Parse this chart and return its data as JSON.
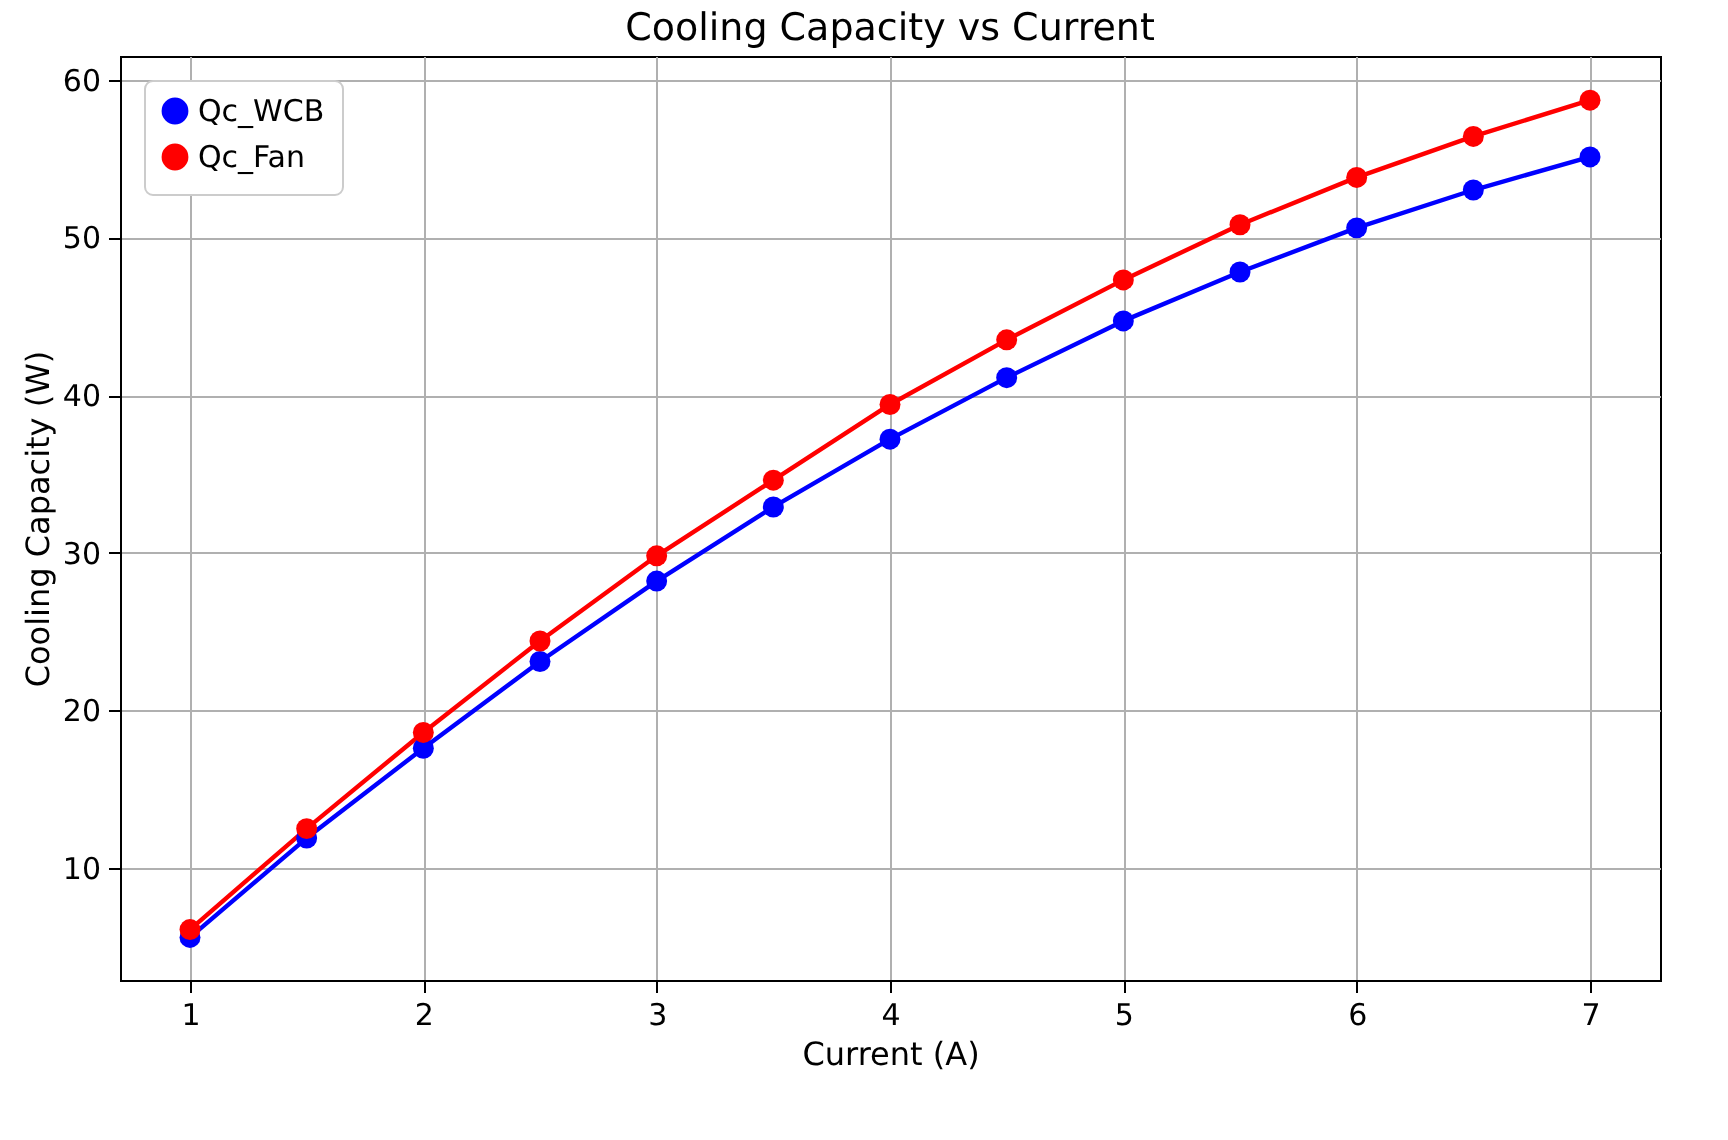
{
  "chart_data": {
    "type": "line",
    "title": "Cooling Capacity vs Current",
    "xlabel": "Current (A)",
    "ylabel": "Cooling Capacity (W)",
    "x": [
      1,
      1.5,
      2,
      2.5,
      3,
      3.5,
      4,
      4.5,
      5,
      5.5,
      6,
      6.5,
      7
    ],
    "series": [
      {
        "name": "Qc_WCB",
        "color": "#0000ff",
        "values": [
          5.6,
          11.9,
          17.6,
          23.1,
          28.2,
          32.9,
          37.2,
          41.1,
          44.7,
          47.8,
          50.6,
          53.0,
          55.1
        ]
      },
      {
        "name": "Qc_Fan",
        "color": "#ff0000",
        "values": [
          6.1,
          12.5,
          18.6,
          24.4,
          29.8,
          34.6,
          39.4,
          43.5,
          47.3,
          50.8,
          53.8,
          56.4,
          58.7
        ]
      }
    ],
    "xlim": [
      0.7,
      7.3
    ],
    "xticks": [
      1,
      2,
      3,
      4,
      5,
      6,
      7
    ],
    "ylim": [
      2.9,
      61.5
    ],
    "yticks": [
      10,
      20,
      30,
      40,
      50,
      60
    ],
    "grid": true,
    "legend": "top left",
    "marker": "circle",
    "line_style": "solid"
  }
}
